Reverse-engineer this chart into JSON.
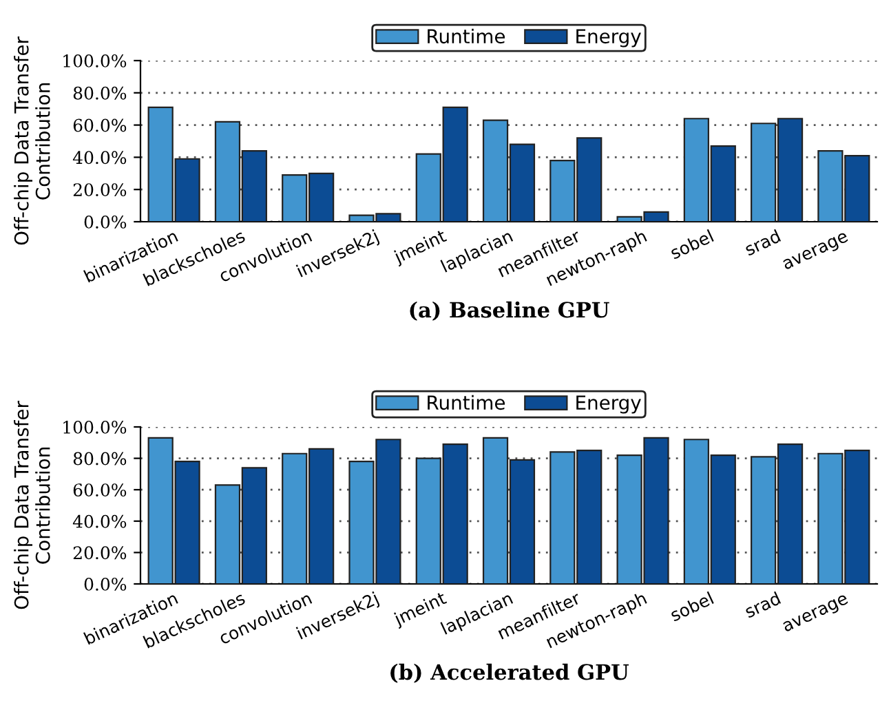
{
  "chart_data": [
    {
      "type": "bar",
      "xlabel": "(a) Baseline GPU",
      "ylabel": "Off-chip Data Transfer\nContribution",
      "categories": [
        "binarization",
        "blackscholes",
        "convolution",
        "inversek2j",
        "jmeint",
        "laplacian",
        "meanfilter",
        "newton-raph",
        "sobel",
        "srad",
        "average"
      ],
      "series": [
        {
          "name": "Runtime",
          "color": "#4195cf",
          "values": [
            71,
            62,
            29,
            4,
            42,
            63,
            38,
            3,
            64,
            61,
            44
          ]
        },
        {
          "name": "Energy",
          "color": "#0c4c94",
          "values": [
            39,
            44,
            30,
            5,
            71,
            48,
            52,
            6,
            47,
            64,
            41
          ]
        }
      ],
      "ylim": [
        0,
        100
      ],
      "yticks": [
        {
          "value": 0,
          "label": "0.0%"
        },
        {
          "value": 20,
          "label": "20.0%"
        },
        {
          "value": 40,
          "label": "40.0%"
        },
        {
          "value": 60,
          "label": "60.0%"
        },
        {
          "value": 80,
          "label": "80.0%"
        },
        {
          "value": 100,
          "label": "100.0%"
        }
      ],
      "grid": "y",
      "legend": "top"
    },
    {
      "type": "bar",
      "xlabel": "(b) Accelerated GPU",
      "ylabel": "Off-chip Data Transfer\nContribution",
      "categories": [
        "binarization",
        "blackscholes",
        "convolution",
        "inversek2j",
        "jmeint",
        "laplacian",
        "meanfilter",
        "newton-raph",
        "sobel",
        "srad",
        "average"
      ],
      "series": [
        {
          "name": "Runtime",
          "color": "#4195cf",
          "values": [
            93,
            63,
            83,
            78,
            80,
            93,
            84,
            82,
            92,
            81,
            83
          ]
        },
        {
          "name": "Energy",
          "color": "#0c4c94",
          "values": [
            78,
            74,
            86,
            92,
            89,
            79,
            85,
            93,
            82,
            89,
            85
          ]
        }
      ],
      "ylim": [
        0,
        100
      ],
      "yticks": [
        {
          "value": 0,
          "label": "0.0%"
        },
        {
          "value": 20,
          "label": "20.0%"
        },
        {
          "value": 40,
          "label": "40.0%"
        },
        {
          "value": 60,
          "label": "60.0%"
        },
        {
          "value": 80,
          "label": "80.0%"
        },
        {
          "value": 100,
          "label": "100.0%"
        }
      ],
      "grid": "y",
      "legend": "top"
    }
  ]
}
